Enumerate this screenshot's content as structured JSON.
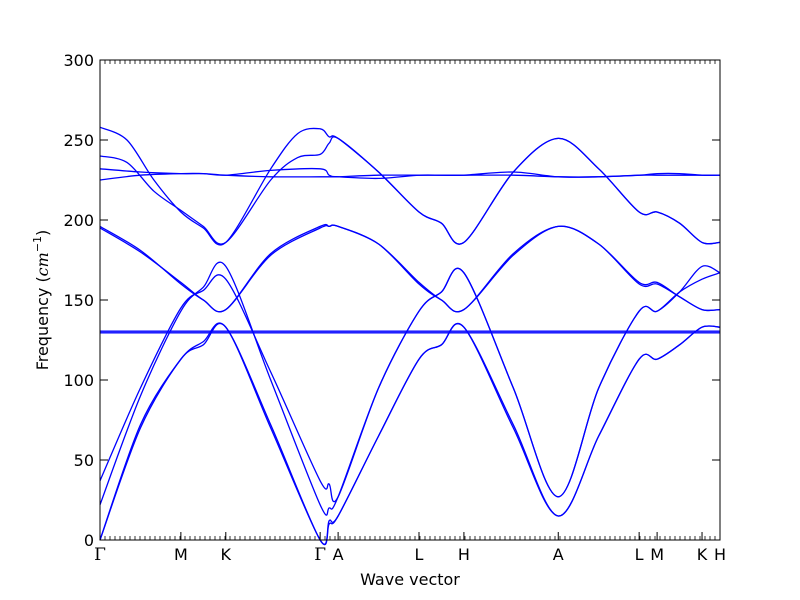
{
  "chart_data": {
    "type": "line",
    "xlabel": "Wave vector",
    "ylabel": "Frequency ($cm^{-1}$)",
    "ylabel_parts": {
      "prefix": "Frequency (",
      "unit_base": "cm",
      "unit_exp": "−1",
      "suffix": ")"
    },
    "ylim": [
      0,
      300
    ],
    "yticks": [
      0,
      50,
      100,
      150,
      200,
      250,
      300
    ],
    "ytick_labels": [
      "0",
      "50",
      "100",
      "150",
      "200",
      "250",
      "300"
    ],
    "grid": false,
    "line_color": "#0000ff",
    "xlim": [
      0,
      6.9
    ],
    "high_symmetry_points": [
      {
        "label": "Γ",
        "x": 0.0
      },
      {
        "label": "M",
        "x": 0.9
      },
      {
        "label": "K",
        "x": 1.4
      },
      {
        "label": "Γ",
        "x": 2.45
      },
      {
        "label": "A",
        "x": 2.65
      },
      {
        "label": "L",
        "x": 3.55
      },
      {
        "label": "H",
        "x": 4.05
      },
      {
        "label": "A",
        "x": 5.1
      },
      {
        "label": "L",
        "x": 6.0
      },
      {
        "label": "M",
        "x": 6.2
      },
      {
        "label": "K",
        "x": 6.7
      },
      {
        "label": "H",
        "x": 6.9
      }
    ],
    "series": [
      {
        "x": [
          0,
          0.45,
          0.9,
          1.15,
          1.4,
          1.9,
          2.45,
          2.55,
          2.65,
          3.1,
          3.55,
          3.8,
          4.05,
          4.6,
          5.1,
          5.55,
          6.0,
          6.2,
          6.45,
          6.7,
          6.9
        ],
        "values": [
          0,
          70,
          113,
          122,
          133,
          70,
          0,
          10,
          15,
          65,
          113,
          122,
          133,
          70,
          15,
          65,
          113,
          113,
          122,
          133,
          133
        ]
      },
      {
        "x": [
          0,
          0.45,
          0.9,
          1.15,
          1.4,
          1.9,
          2.45,
          2.55,
          2.65,
          3.1,
          3.55,
          3.8,
          4.05,
          4.6,
          5.1,
          5.55,
          6.0,
          6.2,
          6.45,
          6.7,
          6.9
        ],
        "values": [
          0,
          72,
          113,
          124,
          133,
          72,
          0,
          12,
          15,
          65,
          113,
          122,
          133,
          72,
          15,
          65,
          113,
          113,
          122,
          133,
          133
        ]
      },
      {
        "x": [
          0,
          0.45,
          0.9,
          1.15,
          1.4,
          1.9,
          2.45,
          2.55,
          2.65,
          3.1,
          3.55,
          3.8,
          4.05,
          4.6,
          5.1,
          5.55,
          6.0,
          6.2,
          6.45,
          6.7,
          6.9
        ],
        "values": [
          22,
          90,
          143,
          158,
          171,
          100,
          22,
          20,
          27,
          95,
          143,
          155,
          167,
          95,
          27,
          95,
          143,
          143,
          155,
          171,
          167
        ]
      },
      {
        "x": [
          0,
          0.45,
          0.9,
          1.15,
          1.4,
          1.9,
          2.45,
          2.55,
          2.65,
          3.1,
          3.55,
          3.8,
          4.05,
          4.6,
          5.1,
          5.55,
          6.0,
          6.2,
          6.45,
          6.7,
          6.9
        ],
        "values": [
          37,
          95,
          145,
          156,
          163,
          105,
          37,
          35,
          27,
          95,
          143,
          155,
          167,
          95,
          27,
          95,
          143,
          143,
          155,
          163,
          167
        ]
      },
      {
        "x": [
          0,
          0.45,
          0.9,
          1.15,
          1.4,
          1.9,
          2.45,
          2.55,
          2.65,
          3.1,
          3.55,
          3.8,
          4.05,
          4.6,
          5.1,
          5.55,
          6.0,
          6.2,
          6.45,
          6.7,
          6.9
        ],
        "values": [
          195,
          180,
          161,
          150,
          144,
          178,
          195,
          196,
          196,
          185,
          161,
          150,
          144,
          178,
          196,
          185,
          161,
          161,
          152,
          144,
          144
        ]
      },
      {
        "x": [
          0,
          0.45,
          0.9,
          1.15,
          1.4,
          1.9,
          2.45,
          2.55,
          2.65,
          3.1,
          3.55,
          3.8,
          4.05,
          4.6,
          5.1,
          5.55,
          6.0,
          6.2,
          6.45,
          6.7,
          6.9
        ],
        "values": [
          196,
          181,
          160,
          150,
          144,
          179,
          196,
          196,
          196,
          185,
          160,
          150,
          144,
          179,
          196,
          185,
          160,
          160,
          152,
          144,
          144
        ]
      },
      {
        "x": [
          0,
          0.9,
          1.4,
          2.45,
          2.65,
          3.55,
          4.05,
          5.1,
          6.0,
          6.2,
          6.7,
          6.9
        ],
        "values": [
          129.5,
          129.5,
          129.5,
          129.5,
          129.5,
          129.5,
          129.5,
          129.5,
          129.5,
          129.5,
          129.5,
          129.5
        ]
      },
      {
        "x": [
          0,
          0.9,
          1.4,
          2.45,
          2.65,
          3.55,
          4.05,
          5.1,
          6.0,
          6.2,
          6.7,
          6.9
        ],
        "values": [
          130.5,
          130.5,
          130.5,
          130.5,
          130.5,
          130.5,
          130.5,
          130.5,
          130.5,
          130.5,
          130.5,
          130.5
        ]
      },
      {
        "x": [
          0,
          0.45,
          0.9,
          1.15,
          1.4,
          1.9,
          2.45,
          2.55,
          2.65,
          3.1,
          3.55,
          3.8,
          4.05,
          4.6,
          5.1,
          5.55,
          6.0,
          6.2,
          6.45,
          6.7,
          6.9
        ],
        "values": [
          225,
          228,
          229,
          229,
          228,
          227,
          227,
          227,
          227,
          228,
          228,
          228,
          228,
          228,
          227,
          227,
          228,
          229,
          229,
          228,
          228
        ]
      },
      {
        "x": [
          0,
          0.45,
          0.9,
          1.15,
          1.4,
          1.9,
          2.45,
          2.55,
          2.65,
          3.1,
          3.55,
          3.8,
          4.05,
          4.6,
          5.1,
          5.55,
          6.0,
          6.2,
          6.45,
          6.7,
          6.9
        ],
        "values": [
          232,
          230,
          229,
          229,
          228,
          231,
          232,
          228,
          227,
          226,
          228,
          228,
          228,
          230,
          227,
          227,
          228,
          228,
          228,
          228,
          228
        ]
      },
      {
        "x": [
          0,
          0.3,
          0.6,
          0.9,
          1.15,
          1.4,
          1.9,
          2.2,
          2.45,
          2.55,
          2.65,
          3.1,
          3.55,
          3.8,
          4.05,
          4.6,
          5.1,
          5.55,
          6.0,
          6.2,
          6.45,
          6.7,
          6.9
        ],
        "values": [
          240,
          236,
          218,
          206,
          196,
          186,
          225,
          239,
          241,
          248,
          251,
          230,
          205,
          198,
          186,
          230,
          251,
          232,
          205,
          205,
          198,
          186,
          186
        ]
      },
      {
        "x": [
          0,
          0.3,
          0.6,
          0.9,
          1.15,
          1.4,
          1.9,
          2.2,
          2.45,
          2.55,
          2.65,
          3.1,
          3.55,
          3.8,
          4.05,
          4.6,
          5.1,
          5.55,
          6.0,
          6.2,
          6.45,
          6.7,
          6.9
        ],
        "values": [
          258,
          250,
          225,
          205,
          195,
          186,
          232,
          254,
          257,
          252,
          251,
          230,
          205,
          198,
          186,
          230,
          251,
          232,
          205,
          205,
          198,
          186,
          186
        ]
      }
    ]
  }
}
